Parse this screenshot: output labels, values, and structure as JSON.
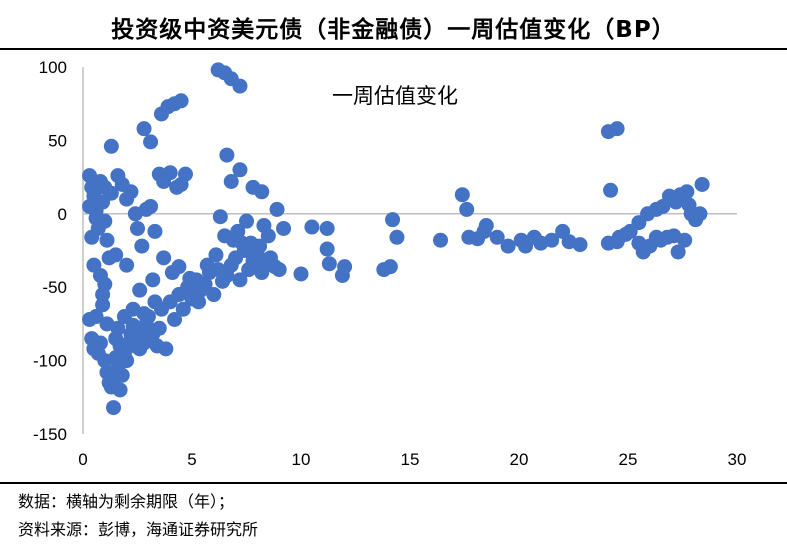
{
  "page": {
    "title": "投资级中资美元债（非金融债）一周估值变化（BP）",
    "note": "数据：横轴为剩余期限（年）；",
    "source": "资料来源：彭博，海通证券研究所"
  },
  "colors": {
    "points": "#4472C4",
    "axis": "#bfbfbf",
    "text": "#000000"
  },
  "chart_data": {
    "type": "scatter",
    "title": "一周估值变化",
    "xlabel": "",
    "ylabel": "",
    "xlim": [
      0,
      30
    ],
    "ylim": [
      -150,
      100
    ],
    "x_ticks": [
      "0",
      "5",
      "10",
      "15",
      "20",
      "25",
      "30"
    ],
    "y_ticks": [
      "100",
      "50",
      "0",
      "-50",
      "-100",
      "-150"
    ],
    "grid": false,
    "series": [
      {
        "points": [
          [
            0.3,
            26
          ],
          [
            0.4,
            18
          ],
          [
            0.5,
            12
          ],
          [
            0.3,
            5
          ],
          [
            0.6,
            -3
          ],
          [
            0.4,
            -16
          ],
          [
            0.8,
            22
          ],
          [
            0.9,
            8
          ],
          [
            1.0,
            -5
          ],
          [
            1.1,
            -18
          ],
          [
            0.7,
            -10
          ],
          [
            0.5,
            -35
          ],
          [
            0.8,
            -42
          ],
          [
            0.9,
            -55
          ],
          [
            1.0,
            -48
          ],
          [
            1.2,
            -30
          ],
          [
            0.6,
            -70
          ],
          [
            0.3,
            -72
          ],
          [
            0.4,
            -85
          ],
          [
            0.5,
            -92
          ],
          [
            0.7,
            -95
          ],
          [
            0.8,
            -88
          ],
          [
            1.0,
            -100
          ],
          [
            1.1,
            -108
          ],
          [
            1.2,
            -115
          ],
          [
            1.3,
            -118
          ],
          [
            1.4,
            -112
          ],
          [
            1.5,
            -98
          ],
          [
            1.6,
            -105
          ],
          [
            1.7,
            -120
          ],
          [
            1.8,
            -110
          ],
          [
            1.4,
            -132
          ],
          [
            1.5,
            -85
          ],
          [
            1.6,
            -78
          ],
          [
            1.7,
            -90
          ],
          [
            1.9,
            -95
          ],
          [
            2.0,
            -100
          ],
          [
            2.1,
            -88
          ],
          [
            2.2,
            -82
          ],
          [
            2.3,
            -76
          ],
          [
            2.4,
            -90
          ],
          [
            2.5,
            -86
          ],
          [
            2.6,
            -92
          ],
          [
            2.7,
            -80
          ],
          [
            2.8,
            -88
          ],
          [
            2.9,
            -75
          ],
          [
            3.0,
            -70
          ],
          [
            3.2,
            -82
          ],
          [
            3.4,
            -90
          ],
          [
            3.5,
            -78
          ],
          [
            3.6,
            -65
          ],
          [
            3.8,
            -92
          ],
          [
            4.0,
            -60
          ],
          [
            4.2,
            -72
          ],
          [
            4.4,
            -55
          ],
          [
            4.6,
            -65
          ],
          [
            4.8,
            -50
          ],
          [
            5.0,
            -58
          ],
          [
            5.2,
            -45
          ],
          [
            5.4,
            -52
          ],
          [
            5.6,
            -48
          ],
          [
            5.8,
            -40
          ],
          [
            6.0,
            -55
          ],
          [
            6.2,
            -38
          ],
          [
            6.4,
            -46
          ],
          [
            6.6,
            -42
          ],
          [
            6.8,
            -35
          ],
          [
            7.0,
            -30
          ],
          [
            7.2,
            -45
          ],
          [
            7.4,
            -25
          ],
          [
            7.6,
            -38
          ],
          [
            7.8,
            -32
          ],
          [
            8.0,
            -28
          ],
          [
            8.2,
            -40
          ],
          [
            8.4,
            -35
          ],
          [
            8.6,
            -30
          ],
          [
            8.8,
            -36
          ],
          [
            9.0,
            -38
          ],
          [
            9.2,
            -10
          ],
          [
            8.9,
            3
          ],
          [
            7.5,
            -5
          ],
          [
            7.3,
            -20
          ],
          [
            6.5,
            -15
          ],
          [
            6.3,
            -2
          ],
          [
            6.8,
            22
          ],
          [
            6.6,
            40
          ],
          [
            7.2,
            30
          ],
          [
            7.8,
            18
          ],
          [
            8.2,
            15
          ],
          [
            8.5,
            -15
          ],
          [
            8.3,
            -8
          ],
          [
            1.3,
            46
          ],
          [
            1.6,
            26
          ],
          [
            1.8,
            20
          ],
          [
            2.0,
            10
          ],
          [
            2.2,
            15
          ],
          [
            2.4,
            0
          ],
          [
            2.5,
            -10
          ],
          [
            2.7,
            -22
          ],
          [
            2.9,
            3
          ],
          [
            3.1,
            5
          ],
          [
            3.3,
            -12
          ],
          [
            3.5,
            27
          ],
          [
            3.7,
            22
          ],
          [
            4.0,
            28
          ],
          [
            4.3,
            18
          ],
          [
            4.5,
            20
          ],
          [
            4.7,
            27
          ],
          [
            2.8,
            58
          ],
          [
            3.1,
            49
          ],
          [
            3.6,
            68
          ],
          [
            3.9,
            73
          ],
          [
            4.2,
            75
          ],
          [
            4.5,
            77
          ],
          [
            6.2,
            98
          ],
          [
            6.5,
            96
          ],
          [
            6.8,
            92
          ],
          [
            7.2,
            87
          ],
          [
            10.0,
            -41
          ],
          [
            10.5,
            -9
          ],
          [
            11.2,
            -10
          ],
          [
            11.2,
            -24
          ],
          [
            11.3,
            -34
          ],
          [
            11.9,
            -42
          ],
          [
            12.0,
            -36
          ],
          [
            13.8,
            -38
          ],
          [
            14.1,
            -36
          ],
          [
            14.2,
            -4
          ],
          [
            14.4,
            -16
          ],
          [
            16.4,
            -18
          ],
          [
            17.4,
            13
          ],
          [
            17.6,
            3
          ],
          [
            17.7,
            -16
          ],
          [
            18.1,
            -17
          ],
          [
            18.4,
            -12
          ],
          [
            18.5,
            -8
          ],
          [
            19.0,
            -16
          ],
          [
            19.5,
            -22
          ],
          [
            20.1,
            -18
          ],
          [
            20.3,
            -22
          ],
          [
            20.7,
            -16
          ],
          [
            21.0,
            -20
          ],
          [
            21.5,
            -18
          ],
          [
            22.0,
            -12
          ],
          [
            22.3,
            -19
          ],
          [
            22.8,
            -21
          ],
          [
            24.1,
            -20
          ],
          [
            24.5,
            -19
          ],
          [
            24.6,
            -16
          ],
          [
            24.9,
            -14
          ],
          [
            25.1,
            -12
          ],
          [
            25.5,
            -20
          ],
          [
            25.7,
            -26
          ],
          [
            26.0,
            -22
          ],
          [
            26.3,
            -16
          ],
          [
            26.5,
            -18
          ],
          [
            26.8,
            -16
          ],
          [
            27.1,
            -15
          ],
          [
            27.3,
            -26
          ],
          [
            27.6,
            -18
          ],
          [
            24.1,
            56
          ],
          [
            24.5,
            58
          ],
          [
            24.2,
            16
          ],
          [
            25.5,
            -6
          ],
          [
            25.9,
            0
          ],
          [
            26.3,
            3
          ],
          [
            26.6,
            5
          ],
          [
            26.9,
            12
          ],
          [
            27.2,
            8
          ],
          [
            27.4,
            13
          ],
          [
            27.7,
            15
          ],
          [
            27.9,
            0
          ],
          [
            28.1,
            -4
          ],
          [
            28.3,
            0
          ],
          [
            28.4,
            20
          ],
          [
            27.8,
            6
          ],
          [
            1.0,
            18
          ],
          [
            1.3,
            14
          ],
          [
            0.6,
            2
          ],
          [
            1.5,
            -28
          ],
          [
            2.0,
            -35
          ],
          [
            2.6,
            -52
          ],
          [
            3.2,
            -45
          ],
          [
            3.7,
            -30
          ],
          [
            4.1,
            -40
          ],
          [
            4.4,
            -36
          ],
          [
            4.9,
            -44
          ],
          [
            5.3,
            -60
          ],
          [
            5.7,
            -35
          ],
          [
            6.1,
            -28
          ],
          [
            6.9,
            -18
          ],
          [
            7.1,
            -12
          ],
          [
            7.7,
            -20
          ],
          [
            8.1,
            -22
          ],
          [
            0.9,
            -62
          ],
          [
            1.1,
            -75
          ],
          [
            1.9,
            -70
          ],
          [
            2.3,
            -65
          ],
          [
            2.8,
            -68
          ],
          [
            3.3,
            -60
          ]
        ]
      }
    ]
  }
}
